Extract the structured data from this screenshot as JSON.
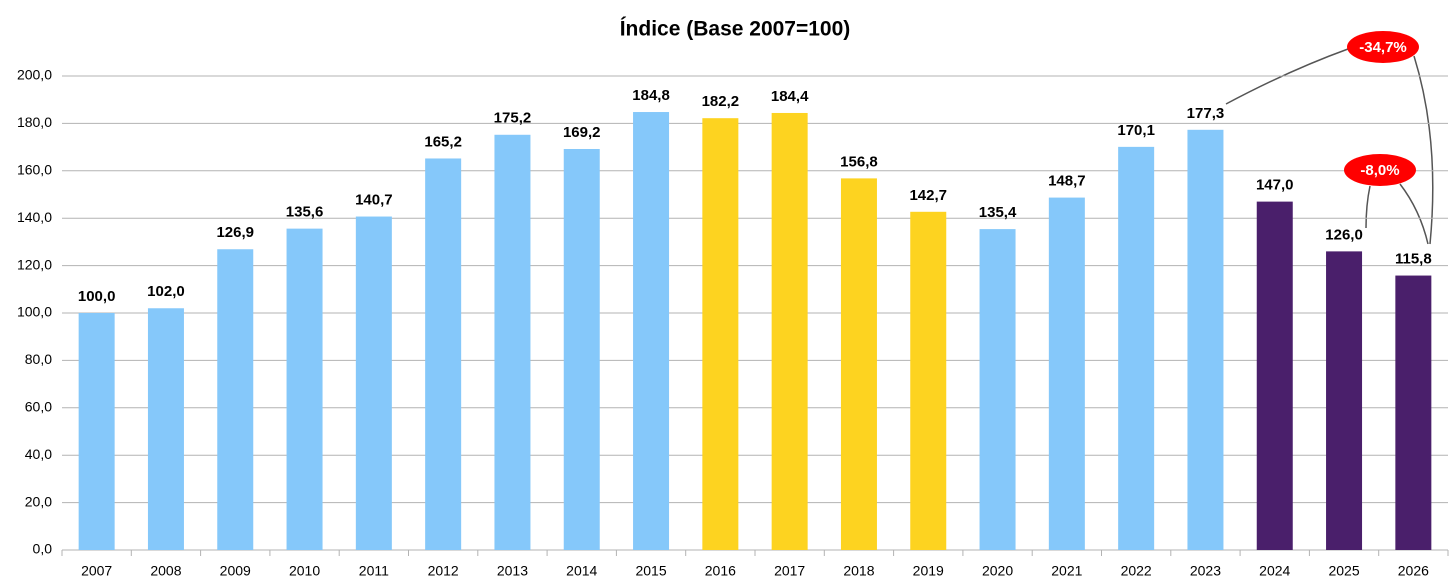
{
  "chart_data": {
    "type": "bar",
    "title": "Índice (Base 2007=100)",
    "categories": [
      "2007",
      "2008",
      "2009",
      "2010",
      "2011",
      "2012",
      "2013",
      "2014",
      "2015",
      "2016",
      "2017",
      "2018",
      "2019",
      "2020",
      "2021",
      "2022",
      "2023",
      "2024",
      "2025",
      "2026"
    ],
    "values": [
      100.0,
      102.0,
      126.9,
      135.6,
      140.7,
      165.2,
      175.2,
      169.2,
      184.8,
      182.2,
      184.4,
      156.8,
      142.7,
      135.4,
      148.7,
      170.1,
      177.3,
      147.0,
      126.0,
      115.8
    ],
    "value_labels": [
      "100,0",
      "102,0",
      "126,9",
      "135,6",
      "140,7",
      "165,2",
      "175,2",
      "169,2",
      "184,8",
      "182,2",
      "184,4",
      "156,8",
      "142,7",
      "135,4",
      "148,7",
      "170,1",
      "177,3",
      "147,0",
      "126,0",
      "115,8"
    ],
    "colors": [
      "#85c8fa",
      "#85c8fa",
      "#85c8fa",
      "#85c8fa",
      "#85c8fa",
      "#85c8fa",
      "#85c8fa",
      "#85c8fa",
      "#85c8fa",
      "#fdd320",
      "#fdd320",
      "#fdd320",
      "#fdd320",
      "#85c8fa",
      "#85c8fa",
      "#85c8fa",
      "#85c8fa",
      "#4a1f6b",
      "#4a1f6b",
      "#4a1f6b"
    ],
    "ylim": [
      0,
      200
    ],
    "yticks": [
      {
        "value": 0,
        "label": "0,0"
      },
      {
        "value": 20,
        "label": "20,0"
      },
      {
        "value": 40,
        "label": "40,0"
      },
      {
        "value": 60,
        "label": "60,0"
      },
      {
        "value": 80,
        "label": "80,0"
      },
      {
        "value": 100,
        "label": "100,0"
      },
      {
        "value": 120,
        "label": "120,0"
      },
      {
        "value": 140,
        "label": "140,0"
      },
      {
        "value": 160,
        "label": "160,0"
      },
      {
        "value": 180,
        "label": "180,0"
      },
      {
        "value": 200,
        "label": "200,0"
      }
    ],
    "grid": true,
    "annotations": [
      "-34,7%",
      "-8,0%"
    ]
  }
}
